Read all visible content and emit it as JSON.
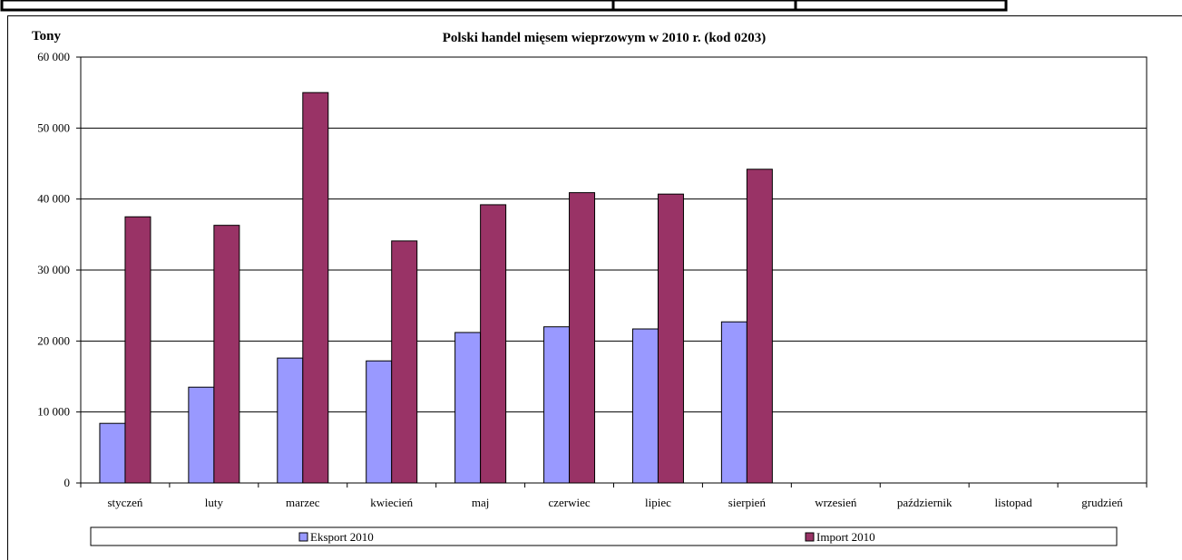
{
  "chart_data": {
    "type": "bar",
    "title": "Polski handel mięsem wieprzowym w 2010 r. (kod 0203)",
    "ylabel": "Tony",
    "xlabel": "",
    "categories": [
      "styczeń",
      "luty",
      "marzec",
      "kwiecień",
      "maj",
      "czerwiec",
      "lipiec",
      "sierpień",
      "wrzesień",
      "październik",
      "listopad",
      "grudzień"
    ],
    "series": [
      {
        "name": "Eksport 2010",
        "color": "#9999ff",
        "values": [
          8400,
          13500,
          17600,
          17200,
          21200,
          22000,
          21700,
          22700,
          null,
          null,
          null,
          null
        ]
      },
      {
        "name": "Import 2010",
        "color": "#993366",
        "values": [
          37500,
          36300,
          55000,
          34100,
          39200,
          40900,
          40700,
          44200,
          null,
          null,
          null,
          null
        ]
      }
    ],
    "ylim": [
      0,
      60000
    ],
    "yticks": [
      0,
      10000,
      20000,
      30000,
      40000,
      50000,
      60000
    ],
    "ytick_labels": [
      "0",
      "10 000",
      "20 000",
      "30 000",
      "40 000",
      "50 000",
      "60 000"
    ],
    "grid": true,
    "legend_position": "bottom"
  }
}
